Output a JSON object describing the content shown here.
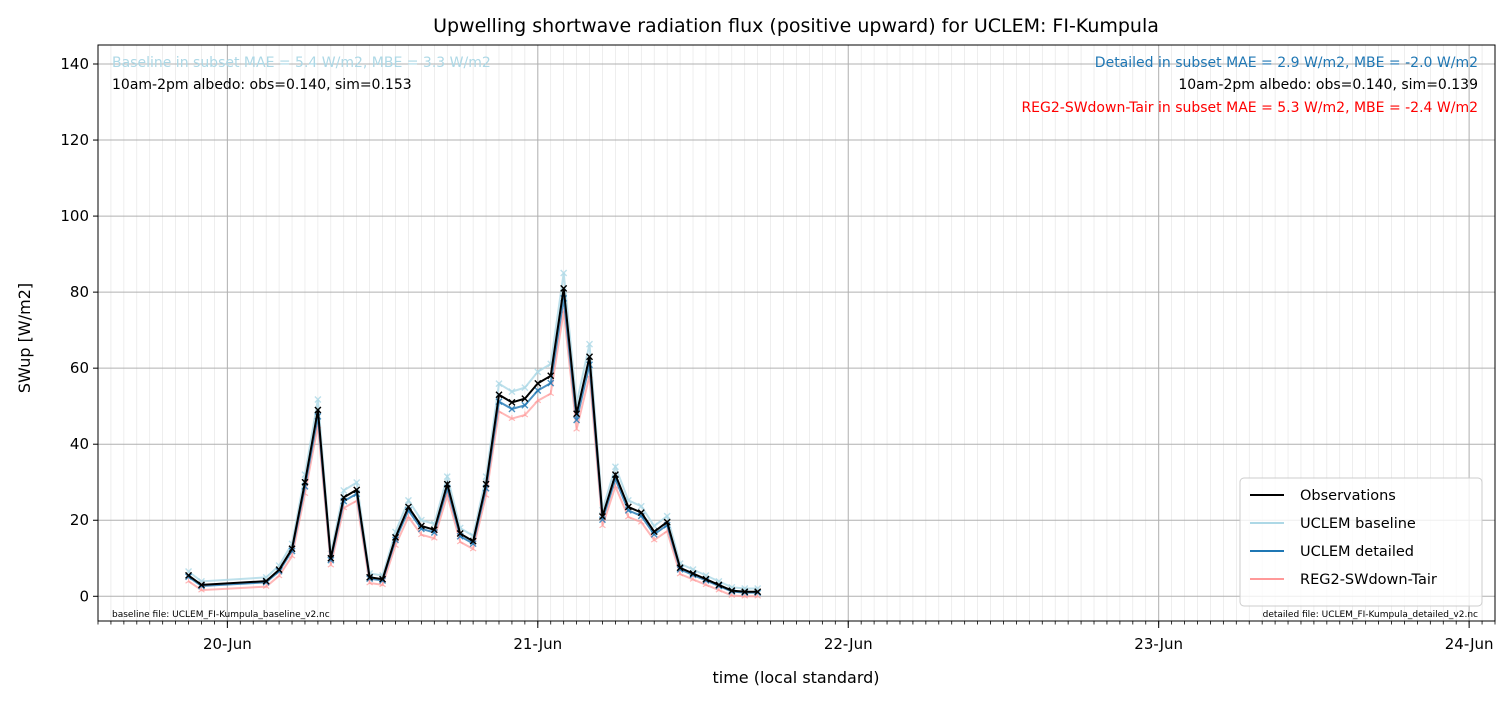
{
  "chart_data": {
    "type": "line",
    "title": "Upwelling shortwave radiation flux (positive upward) for UCLEM: FI-Kumpula",
    "xlabel": "time (local standard)",
    "ylabel": "SWup [W/m2]",
    "x_range_days": [
      "2024-06-19T14:00",
      "2024-06-24T02:00"
    ],
    "ylim": [
      -6.5,
      145
    ],
    "yticks": [
      0,
      20,
      40,
      60,
      80,
      100,
      120,
      140
    ],
    "xticks": [
      {
        "date": "2024-06-20T00:00",
        "label": "20-Jun"
      },
      {
        "date": "2024-06-21T00:00",
        "label": "21-Jun"
      },
      {
        "date": "2024-06-22T00:00",
        "label": "22-Jun"
      },
      {
        "date": "2024-06-23T00:00",
        "label": "23-Jun"
      },
      {
        "date": "2024-06-24T00:00",
        "label": "24-Jun"
      }
    ],
    "grid": true,
    "legend_position": "lower-right",
    "annotations": {
      "baseline_stats": "Baseline in subset MAE = 5.4 W/m2, MBE = 3.3 W/m2",
      "baseline_albedo": "10am-2pm albedo: obs=0.140, sim=0.153",
      "detailed_stats": "Detailed in subset MAE = 2.9 W/m2, MBE = -2.0 W/m2",
      "detailed_albedo": "10am-2pm albedo: obs=0.140, sim=0.139",
      "reg2_stats": "REG2-SWdown-Tair in subset MAE = 5.3 W/m2, MBE = -2.4 W/m2",
      "baseline_file": "baseline file: UCLEM_FI-Kumpula_baseline_v2.nc",
      "detailed_file": "detailed file: UCLEM_FI-Kumpula_detailed_v2.nc"
    },
    "series": [
      {
        "name": "Observations",
        "color": "#000000",
        "marker": "x",
        "points": [
          [
            "2024-06-19T21:00",
            5.5
          ],
          [
            "2024-06-19T22:00",
            3
          ],
          [
            "2024-06-20T03:00",
            4
          ],
          [
            "2024-06-20T04:00",
            7
          ],
          [
            "2024-06-20T05:00",
            12.5
          ],
          [
            "2024-06-20T06:00",
            30
          ],
          [
            "2024-06-20T07:00",
            49
          ],
          [
            "2024-06-20T08:00",
            10
          ],
          [
            "2024-06-20T09:00",
            26
          ],
          [
            "2024-06-20T10:00",
            28
          ],
          [
            "2024-06-20T11:00",
            5
          ],
          [
            "2024-06-20T12:00",
            4.5
          ],
          [
            "2024-06-20T13:00",
            15.5
          ],
          [
            "2024-06-20T14:00",
            23.5
          ],
          [
            "2024-06-20T15:00",
            18.5
          ],
          [
            "2024-06-20T16:00",
            17.5
          ],
          [
            "2024-06-20T17:00",
            29.5
          ],
          [
            "2024-06-20T18:00",
            16.5
          ],
          [
            "2024-06-20T19:00",
            14.5
          ],
          [
            "2024-06-20T20:00",
            29.5
          ],
          [
            "2024-06-20T21:00",
            53
          ],
          [
            "2024-06-20T22:00",
            51
          ],
          [
            "2024-06-20T23:00",
            52
          ],
          [
            "2024-06-21T00:00",
            56
          ],
          [
            "2024-06-21T01:00",
            58
          ],
          [
            "2024-06-21T02:00",
            81
          ],
          [
            "2024-06-21T03:00",
            48
          ],
          [
            "2024-06-21T04:00",
            63
          ],
          [
            "2024-06-21T05:00",
            21
          ],
          [
            "2024-06-21T06:00",
            32
          ],
          [
            "2024-06-21T07:00",
            23.5
          ],
          [
            "2024-06-21T08:00",
            22
          ],
          [
            "2024-06-21T09:00",
            17
          ],
          [
            "2024-06-21T10:00",
            19.5
          ],
          [
            "2024-06-21T11:00",
            7.5
          ],
          [
            "2024-06-21T12:00",
            6
          ],
          [
            "2024-06-21T13:00",
            4.5
          ],
          [
            "2024-06-21T14:00",
            3
          ],
          [
            "2024-06-21T15:00",
            1.5
          ],
          [
            "2024-06-21T16:00",
            1.2
          ],
          [
            "2024-06-21T17:00",
            1.2
          ]
        ]
      },
      {
        "name": "UCLEM baseline",
        "color": "#add8e6",
        "marker": "x"
      },
      {
        "name": "UCLEM detailed",
        "color": "#1f77b4",
        "marker": "x"
      },
      {
        "name": "REG2-SWdown-Tair",
        "color": "#ff9999",
        "marker": "tri"
      }
    ]
  }
}
